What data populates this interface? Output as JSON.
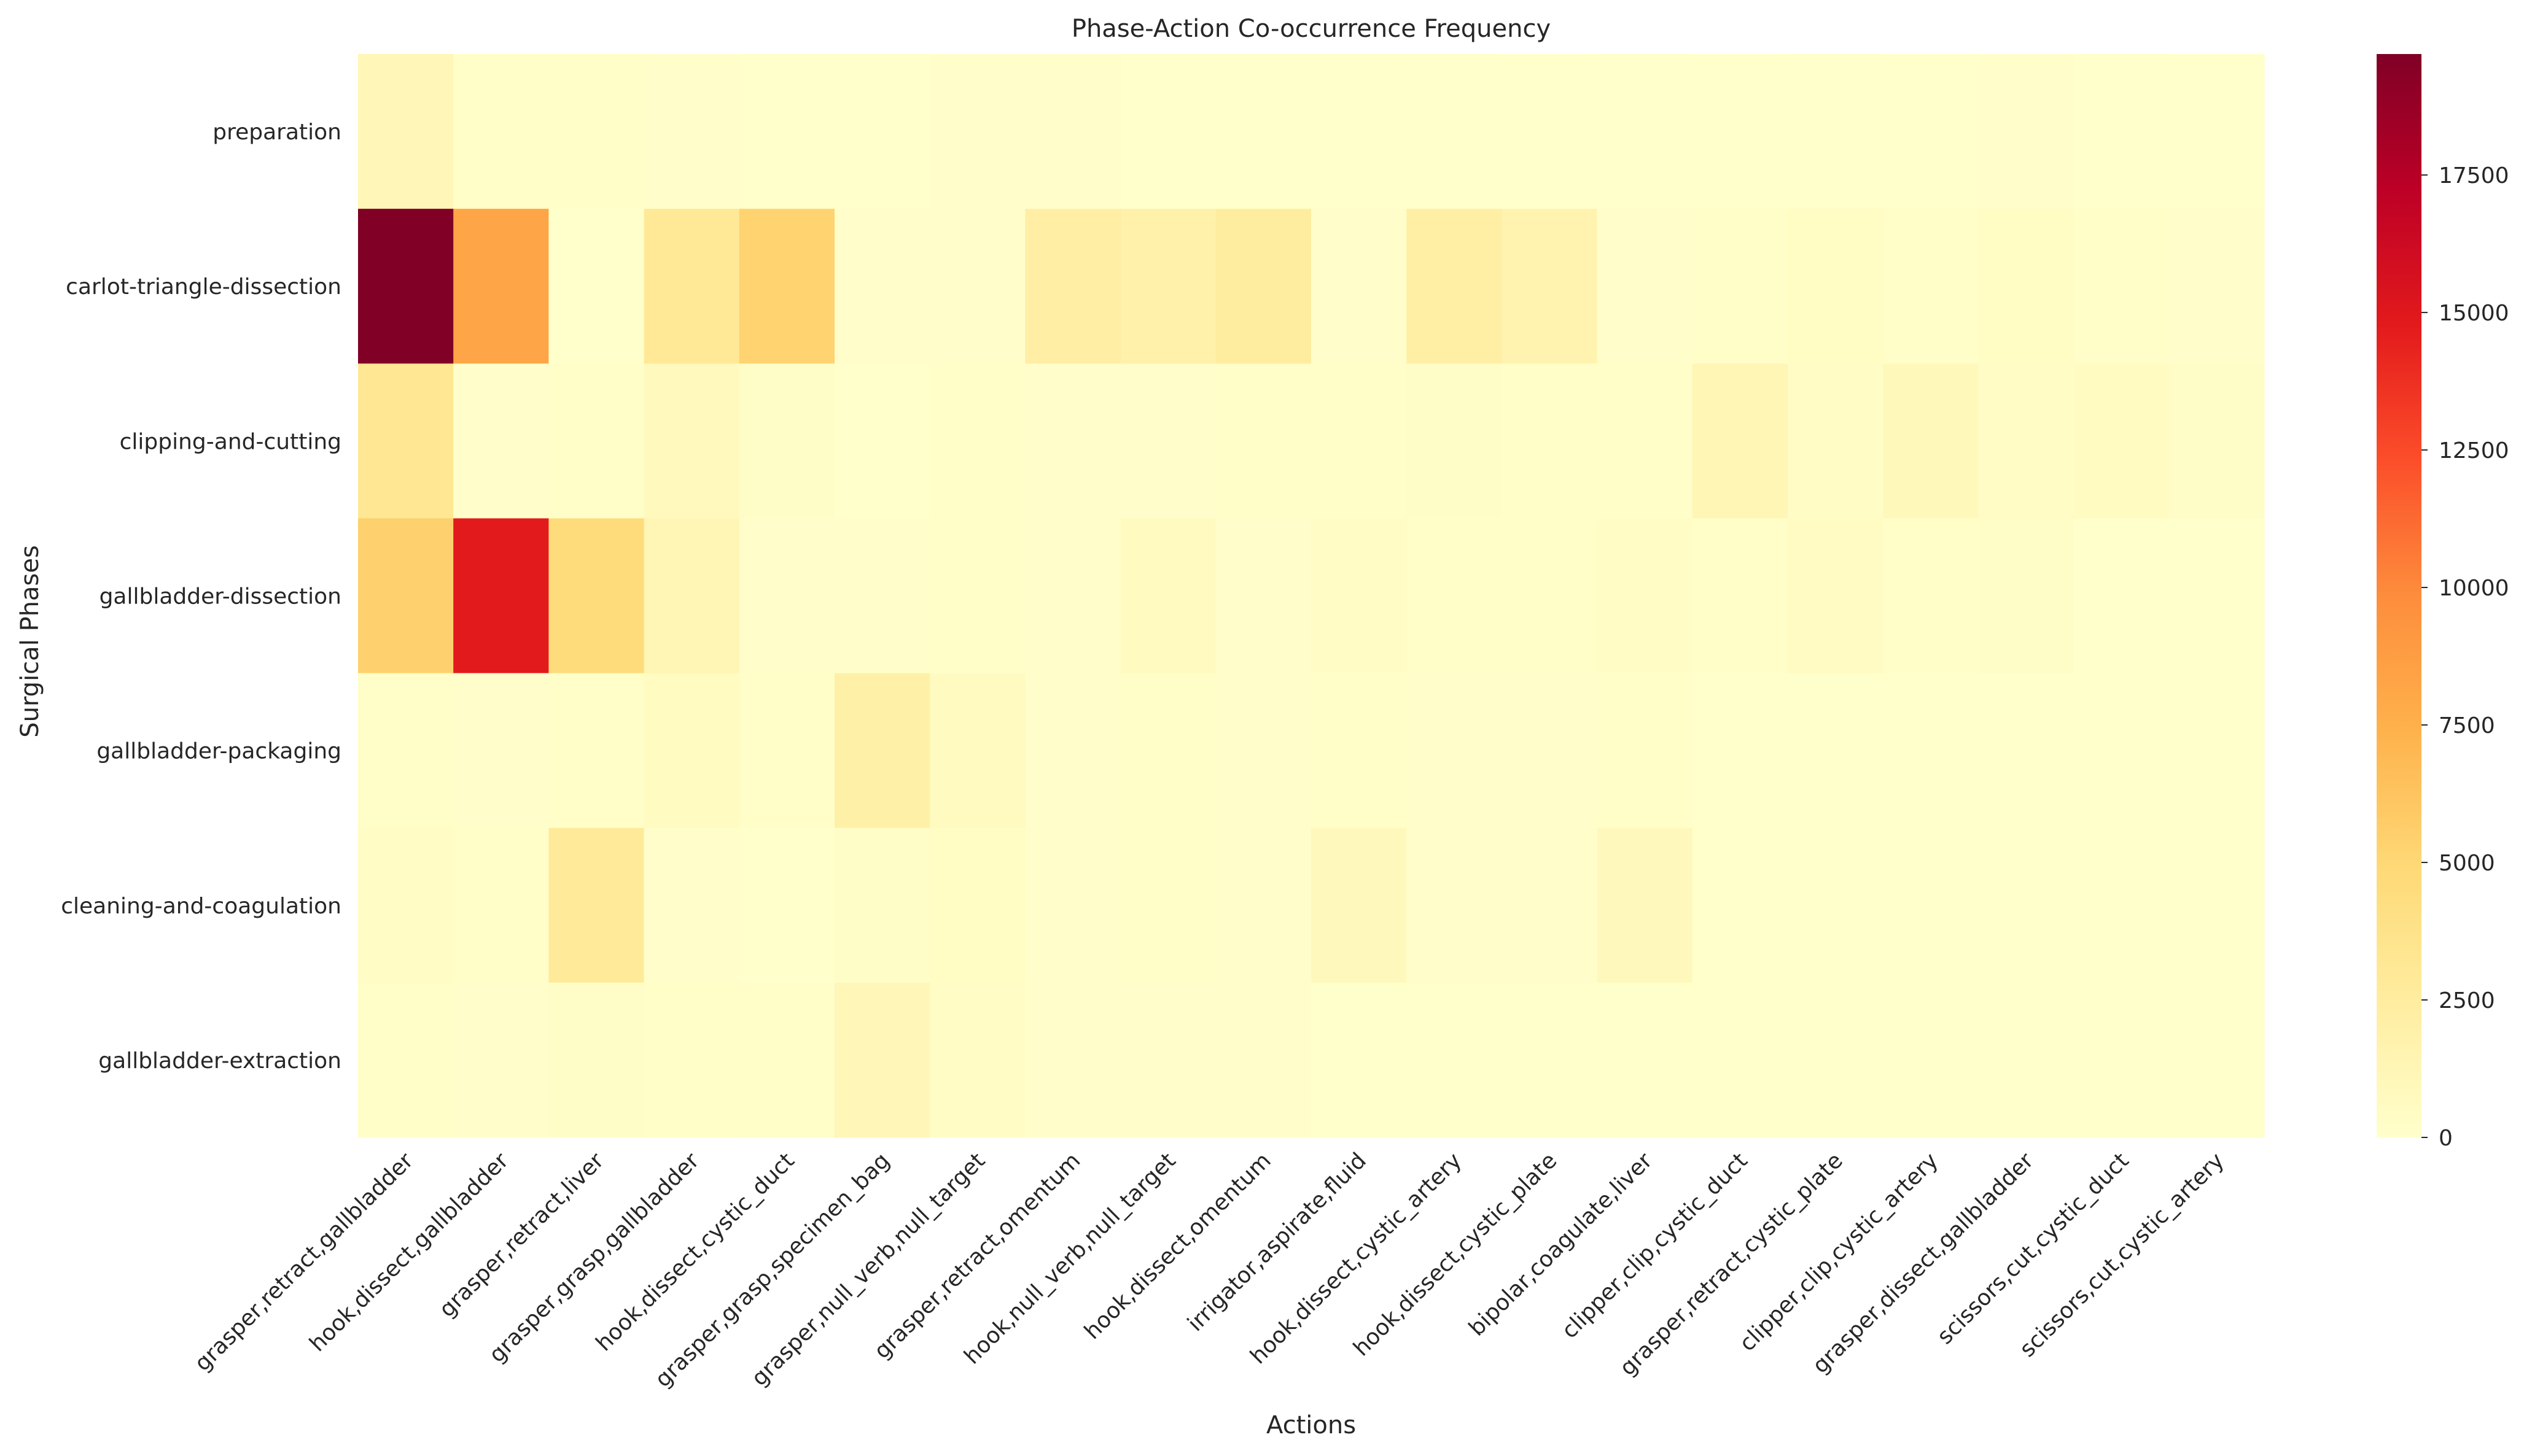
{
  "chart_data": {
    "type": "heatmap",
    "title": "Phase-Action Co-occurrence Frequency",
    "xlabel": "Actions",
    "ylabel": "Surgical Phases",
    "rows": [
      "preparation",
      "carlot-triangle-dissection",
      "clipping-and-cutting",
      "gallbladder-dissection",
      "gallbladder-packaging",
      "cleaning-and-coagulation",
      "gallbladder-extraction"
    ],
    "columns": [
      "grasper,retract,gallbladder",
      "hook,dissect,gallbladder",
      "grasper,retract,liver",
      "grasper,grasp,gallbladder",
      "hook,dissect,cystic_duct",
      "grasper,grasp,specimen_bag",
      "grasper,null_verb,null_target",
      "grasper,retract,omentum",
      "hook,null_verb,null_target",
      "hook,dissect,omentum",
      "irrigator,aspirate,fluid",
      "hook,dissect,cystic_artery",
      "hook,dissect,cystic_plate",
      "bipolar,coagulate,liver",
      "clipper,clip,cystic_duct",
      "grasper,retract,cystic_plate",
      "clipper,clip,cystic_artery",
      "grasper,dissect,gallbladder",
      "scissors,cut,cystic_duct",
      "scissors,cut,cystic_artery"
    ],
    "values": [
      [
        1200,
        200,
        150,
        100,
        50,
        50,
        100,
        80,
        60,
        50,
        40,
        30,
        20,
        30,
        20,
        60,
        20,
        80,
        40,
        20
      ],
      [
        19700,
        8200,
        50,
        3000,
        5300,
        80,
        80,
        2300,
        1900,
        2500,
        100,
        2200,
        1600,
        100,
        150,
        450,
        250,
        450,
        200,
        100
      ],
      [
        3200,
        100,
        250,
        800,
        300,
        50,
        200,
        80,
        100,
        150,
        250,
        300,
        200,
        150,
        1300,
        350,
        950,
        350,
        600,
        300
      ],
      [
        5400,
        14800,
        4600,
        1300,
        100,
        100,
        150,
        100,
        700,
        100,
        350,
        200,
        200,
        400,
        200,
        500,
        150,
        300,
        50,
        50
      ],
      [
        250,
        100,
        200,
        600,
        200,
        2000,
        700,
        100,
        150,
        100,
        150,
        100,
        100,
        150,
        50,
        50,
        50,
        50,
        50,
        50
      ],
      [
        350,
        150,
        2800,
        100,
        50,
        300,
        450,
        100,
        200,
        80,
        900,
        100,
        80,
        900,
        50,
        50,
        50,
        50,
        50,
        50
      ],
      [
        150,
        100,
        300,
        200,
        250,
        1200,
        350,
        100,
        100,
        100,
        50,
        50,
        50,
        50,
        50,
        50,
        50,
        50,
        50,
        50
      ]
    ],
    "colorbar": {
      "min": 0,
      "max": 19700,
      "ticks": [
        0,
        2500,
        5000,
        7500,
        10000,
        12500,
        15000,
        17500
      ],
      "colormap": "YlOrRd",
      "colors": [
        "#ffffcc",
        "#ffeda0",
        "#fed976",
        "#feb24c",
        "#fd8d3c",
        "#fc4e2a",
        "#e31a1c",
        "#bd0026",
        "#800026"
      ]
    },
    "grid": false
  }
}
